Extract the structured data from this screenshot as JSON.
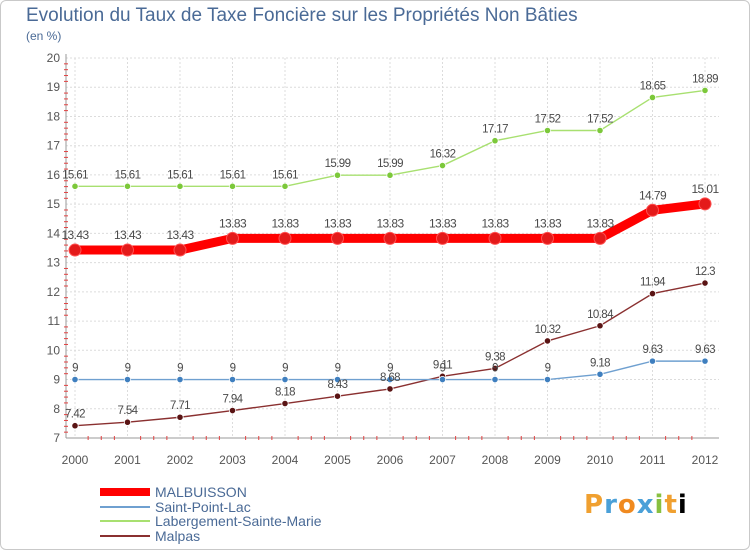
{
  "page": {
    "title": "Evolution du Taux de Taxe Foncière sur les Propriétés Non Bâties",
    "unit_label": "(en %)",
    "logo_text": "Proxiti"
  },
  "chart_data": {
    "type": "line",
    "title": "Evolution du Taux de Taxe Foncière sur les Propriétés Non Bâties",
    "ylabel": "(en %)",
    "xlabel": "",
    "x": [
      "2000",
      "2001",
      "2002",
      "2003",
      "2004",
      "2005",
      "2006",
      "2007",
      "2008",
      "2009",
      "2010",
      "2011",
      "2012"
    ],
    "ylim": [
      7,
      20
    ],
    "yticks": [
      "7",
      "8",
      "9",
      "10",
      "11",
      "12",
      "13",
      "14",
      "15",
      "16",
      "17",
      "18",
      "19",
      "20"
    ],
    "grid": true,
    "legend_position": "bottom-left",
    "series": [
      {
        "name": "MALBUISSON",
        "color": "#ff0000",
        "point_color": "#e41a1a",
        "values": [
          13.43,
          13.43,
          13.43,
          13.83,
          13.83,
          13.83,
          13.83,
          13.83,
          13.83,
          13.83,
          13.83,
          14.79,
          15.01
        ],
        "labels": [
          "13.43",
          "13.43",
          "13.43",
          "13.83",
          "13.83",
          "13.83",
          "13.83",
          "13.83",
          "13.83",
          "13.83",
          "13.83",
          "14.79",
          "15.01"
        ]
      },
      {
        "name": "Saint-Point-Lac",
        "color": "#6fa0d0",
        "point_color": "#3f7fbf",
        "values": [
          9,
          9,
          9,
          9,
          9,
          9,
          9,
          9,
          9,
          9,
          9.18,
          9.63,
          9.63
        ],
        "labels": [
          "9",
          "9",
          "9",
          "9",
          "9",
          "9",
          "9",
          "9",
          "9",
          "9",
          "9.18",
          "9.63",
          "9.63"
        ]
      },
      {
        "name": "Labergement-Sainte-Marie",
        "color": "#a8e070",
        "point_color": "#7cc83a",
        "values": [
          15.61,
          15.61,
          15.61,
          15.61,
          15.61,
          15.99,
          15.99,
          16.32,
          17.17,
          17.52,
          17.52,
          18.65,
          18.89
        ],
        "labels": [
          "15.61",
          "15.61",
          "15.61",
          "15.61",
          "15.61",
          "15.99",
          "15.99",
          "16.32",
          "17.17",
          "17.52",
          "17.52",
          "18.65",
          "18.89"
        ]
      },
      {
        "name": "Malpas",
        "color": "#8a3030",
        "point_color": "#5a1414",
        "values": [
          7.42,
          7.54,
          7.71,
          7.94,
          8.18,
          8.43,
          8.68,
          9.11,
          9.38,
          10.32,
          10.84,
          11.94,
          12.3
        ],
        "labels": [
          "7.42",
          "7.54",
          "7.71",
          "7.94",
          "8.18",
          "8.43",
          "8.68",
          "9.11",
          "9.38",
          "10.32",
          "10.84",
          "11.94",
          "12.3"
        ]
      }
    ]
  }
}
